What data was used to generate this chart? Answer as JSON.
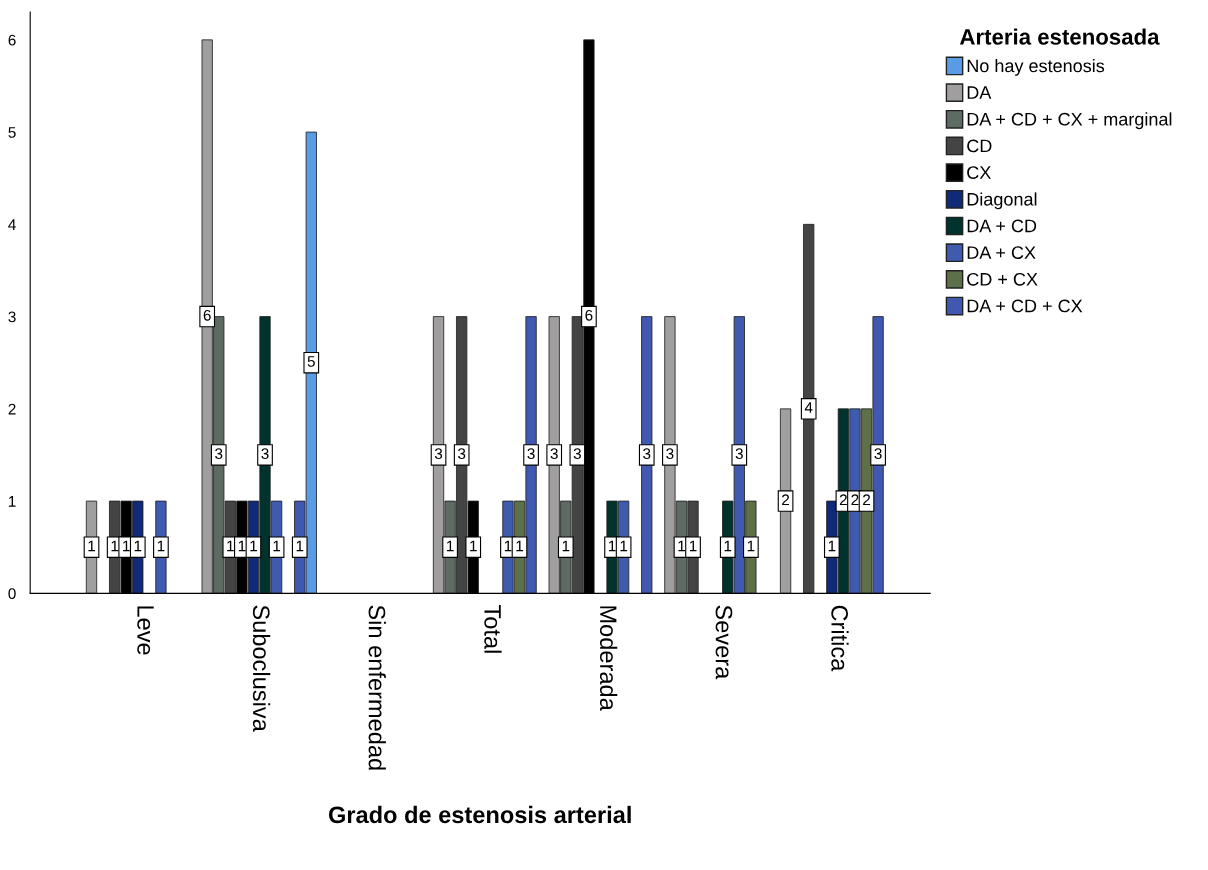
{
  "chart_data": {
    "type": "bar",
    "xlabel": "Grado de estenosis arterial",
    "legend_title": "Arteria estenosada",
    "categories": [
      "Leve",
      "Suboclusiva",
      "Sin enfermedad",
      "Total",
      "Moderada",
      "Severa",
      "Critica"
    ],
    "series": [
      {
        "name": "No hay estenosis",
        "color": "#5a9be6",
        "values": [
          null,
          5,
          null,
          null,
          null,
          null,
          null
        ]
      },
      {
        "name": "DA",
        "color": "#a09e9e",
        "values": [
          1,
          6,
          null,
          3,
          3,
          3,
          2
        ]
      },
      {
        "name": "DA + CD + CX + marginal",
        "color": "#5e6b63",
        "values": [
          null,
          3,
          null,
          1,
          1,
          1,
          null
        ]
      },
      {
        "name": "CD",
        "color": "#444444",
        "values": [
          1,
          1,
          null,
          3,
          3,
          1,
          4
        ]
      },
      {
        "name": "CX",
        "color": "#000000",
        "values": [
          1,
          1,
          null,
          1,
          6,
          null,
          null
        ]
      },
      {
        "name": "Diagonal",
        "color": "#0f2a78",
        "values": [
          1,
          1,
          null,
          null,
          null,
          null,
          1
        ]
      },
      {
        "name": "DA + CD",
        "color": "#00332e",
        "values": [
          null,
          3,
          null,
          null,
          1,
          1,
          2
        ]
      },
      {
        "name": "DA + CX",
        "color": "#3f5bb0",
        "values": [
          1,
          1,
          null,
          1,
          1,
          3,
          2
        ]
      },
      {
        "name": "CD + CX",
        "color": "#5e7048",
        "values": [
          null,
          null,
          null,
          1,
          null,
          1,
          2
        ]
      },
      {
        "name": "DA + CD + CX",
        "color": "#4058b0",
        "values": [
          null,
          1,
          null,
          3,
          3,
          null,
          3
        ]
      }
    ],
    "ylim": [
      0,
      6.3
    ],
    "yticks": [
      0,
      1,
      2,
      3,
      4,
      5,
      6
    ],
    "grid": false,
    "legend": "top right",
    "data_labels": true
  }
}
